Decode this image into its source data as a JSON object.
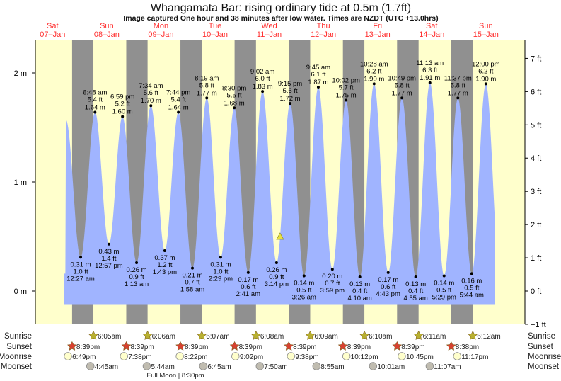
{
  "chart_data": {
    "type": "area",
    "title": "Whangamata Bar: rising  ordinary tide at 0.5m (1.7ft)",
    "subtitle": "Image captured One hour and 38 minutes after low water. Times are NZDT (UTC +13.0hrs)",
    "days": [
      {
        "dow": "Sat",
        "date": "07–Jan"
      },
      {
        "dow": "Sun",
        "date": "08–Jan"
      },
      {
        "dow": "Mon",
        "date": "09–Jan"
      },
      {
        "dow": "Tue",
        "date": "10–Jan"
      },
      {
        "dow": "Wed",
        "date": "11–Jan"
      },
      {
        "dow": "Thu",
        "date": "12–Jan"
      },
      {
        "dow": "Fri",
        "date": "13–Jan"
      },
      {
        "dow": "Sat",
        "date": "14–Jan"
      },
      {
        "dow": "Sun",
        "date": "15–Jan"
      }
    ],
    "y_left": {
      "label_unit": "m",
      "ticks": [
        "2 m",
        "1 m",
        "0 m"
      ],
      "tick_values": [
        2,
        1,
        0
      ]
    },
    "y_right": {
      "ticks": [
        "7 ft",
        "6 ft",
        "5 ft",
        "4 ft",
        "3 ft",
        "2 ft",
        "1 ft",
        "0 ft",
        "−1 ft"
      ],
      "tick_values": [
        7,
        6,
        5,
        4,
        3,
        2,
        1,
        0,
        -1
      ]
    },
    "ylim_m": [
      -0.3,
      2.3
    ],
    "current": {
      "level_m": 0.5,
      "level_ft": 1.7,
      "state": "rising"
    },
    "extremes": [
      {
        "type": "low",
        "day": 1,
        "time": "12:27 am",
        "m": "0.31 m",
        "ft": "1.0 ft",
        "h": 0.31
      },
      {
        "type": "high",
        "day": 1,
        "time": "6:48 am",
        "m": "1.64 m",
        "ft": "5.4 ft",
        "h": 1.64
      },
      {
        "type": "low",
        "day": 1,
        "time": "12:57 pm",
        "m": "0.43 m",
        "ft": "1.4 ft",
        "h": 0.43
      },
      {
        "type": "high",
        "day": 1,
        "time": "6:59 pm",
        "m": "1.60 m",
        "ft": "5.2 ft",
        "h": 1.6
      },
      {
        "type": "low",
        "day": 2,
        "time": "1:13 am",
        "m": "0.26 m",
        "ft": "0.9 ft",
        "h": 0.26
      },
      {
        "type": "high",
        "day": 2,
        "time": "7:34 am",
        "m": "1.70 m",
        "ft": "5.6 ft",
        "h": 1.7
      },
      {
        "type": "low",
        "day": 2,
        "time": "1:43 pm",
        "m": "0.37 m",
        "ft": "1.2 ft",
        "h": 0.37
      },
      {
        "type": "high",
        "day": 2,
        "time": "7:44 pm",
        "m": "1.64 m",
        "ft": "5.4 ft",
        "h": 1.64
      },
      {
        "type": "low",
        "day": 3,
        "time": "1:58 am",
        "m": "0.21 m",
        "ft": "0.7 ft",
        "h": 0.21
      },
      {
        "type": "high",
        "day": 3,
        "time": "8:19 am",
        "m": "1.77 m",
        "ft": "5.8 ft",
        "h": 1.77
      },
      {
        "type": "low",
        "day": 3,
        "time": "2:29 pm",
        "m": "0.31 m",
        "ft": "1.0 ft",
        "h": 0.31
      },
      {
        "type": "high",
        "day": 3,
        "time": "8:30 pm",
        "m": "1.68 m",
        "ft": "5.5 ft",
        "h": 1.68
      },
      {
        "type": "low",
        "day": 4,
        "time": "2:41 am",
        "m": "0.17 m",
        "ft": "0.6 ft",
        "h": 0.17
      },
      {
        "type": "high",
        "day": 4,
        "time": "9:02 am",
        "m": "1.83 m",
        "ft": "6.0 ft",
        "h": 1.83
      },
      {
        "type": "low",
        "day": 4,
        "time": "3:14 pm",
        "m": "0.26 m",
        "ft": "0.9 ft",
        "h": 0.26
      },
      {
        "type": "high",
        "day": 4,
        "time": "9:15 pm",
        "m": "1.72 m",
        "ft": "5.6 ft",
        "h": 1.72
      },
      {
        "type": "low",
        "day": 5,
        "time": "3:26 am",
        "m": "0.14 m",
        "ft": "0.5 ft",
        "h": 0.14
      },
      {
        "type": "high",
        "day": 5,
        "time": "9:45 am",
        "m": "1.87 m",
        "ft": "6.1 ft",
        "h": 1.87
      },
      {
        "type": "low",
        "day": 5,
        "time": "3:59 pm",
        "m": "0.20 m",
        "ft": "0.7 ft",
        "h": 0.2
      },
      {
        "type": "high",
        "day": 5,
        "time": "10:02 pm",
        "m": "1.75 m",
        "ft": "5.7 ft",
        "h": 1.75
      },
      {
        "type": "low",
        "day": 6,
        "time": "4:10 am",
        "m": "0.13 m",
        "ft": "0.4 ft",
        "h": 0.13
      },
      {
        "type": "high",
        "day": 6,
        "time": "10:28 am",
        "m": "1.90 m",
        "ft": "6.2 ft",
        "h": 1.9
      },
      {
        "type": "low",
        "day": 6,
        "time": "4:43 pm",
        "m": "0.17 m",
        "ft": "0.6 ft",
        "h": 0.17
      },
      {
        "type": "high",
        "day": 6,
        "time": "10:49 pm",
        "m": "1.77 m",
        "ft": "5.8 ft",
        "h": 1.77
      },
      {
        "type": "low",
        "day": 7,
        "time": "4:55 am",
        "m": "0.13 m",
        "ft": "0.4 ft",
        "h": 0.13
      },
      {
        "type": "high",
        "day": 7,
        "time": "11:13 am",
        "m": "1.91 m",
        "ft": "6.3 ft",
        "h": 1.91
      },
      {
        "type": "low",
        "day": 7,
        "time": "5:29 pm",
        "m": "0.14 m",
        "ft": "0.5 ft",
        "h": 0.14
      },
      {
        "type": "high",
        "day": 7,
        "time": "11:37 pm",
        "m": "1.77 m",
        "ft": "5.8 ft",
        "h": 1.77
      },
      {
        "type": "low",
        "day": 8,
        "time": "5:44 am",
        "m": "0.16 m",
        "ft": "0.5 ft",
        "h": 0.16
      },
      {
        "type": "high",
        "day": 8,
        "time": "12:00 pm",
        "m": "1.90 m",
        "ft": "6.2 ft",
        "h": 1.9
      }
    ],
    "astro_labels": {
      "sunrise": "Sunrise",
      "sunset": "Sunset",
      "moonrise": "Moonrise",
      "moonset": "Moonset"
    },
    "sunrise": [
      {
        "day": 1,
        "time": "6:05am"
      },
      {
        "day": 2,
        "time": "6:06am"
      },
      {
        "day": 3,
        "time": "6:07am"
      },
      {
        "day": 4,
        "time": "6:08am"
      },
      {
        "day": 5,
        "time": "6:09am"
      },
      {
        "day": 6,
        "time": "6:10am"
      },
      {
        "day": 7,
        "time": "6:11am"
      },
      {
        "day": 8,
        "time": "6:12am"
      }
    ],
    "sunset": [
      {
        "day": 0,
        "time": "8:39pm"
      },
      {
        "day": 1,
        "time": "8:39pm"
      },
      {
        "day": 2,
        "time": "8:39pm"
      },
      {
        "day": 3,
        "time": "8:39pm"
      },
      {
        "day": 4,
        "time": "8:39pm"
      },
      {
        "day": 5,
        "time": "8:39pm"
      },
      {
        "day": 6,
        "time": "8:39pm"
      },
      {
        "day": 7,
        "time": "8:38pm"
      }
    ],
    "moonrise": [
      {
        "day": 0,
        "time": "6:49pm"
      },
      {
        "day": 1,
        "time": "7:38pm"
      },
      {
        "day": 2,
        "time": "8:22pm"
      },
      {
        "day": 3,
        "time": "9:02pm"
      },
      {
        "day": 4,
        "time": "9:38pm"
      },
      {
        "day": 5,
        "time": "10:12pm"
      },
      {
        "day": 6,
        "time": "10:45pm"
      },
      {
        "day": 7,
        "time": "11:17pm"
      }
    ],
    "moonset": [
      {
        "day": 1,
        "time": "4:45am"
      },
      {
        "day": 2,
        "time": "5:44am"
      },
      {
        "day": 3,
        "time": "6:45am"
      },
      {
        "day": 4,
        "time": "7:50am"
      },
      {
        "day": 5,
        "time": "8:55am"
      },
      {
        "day": 6,
        "time": "10:01am"
      },
      {
        "day": 7,
        "time": "11:07am"
      }
    ],
    "moon_phase": "Full Moon | 8:30pm",
    "colors": {
      "water": "#a0b4ff",
      "day": "#ffffcc",
      "night": "#909090",
      "date": "#ff3030",
      "sunrise": "#b8b030",
      "sunset": "#d84030",
      "moonrise": "#ffffcc",
      "moonset": "#c0bcb0"
    }
  }
}
